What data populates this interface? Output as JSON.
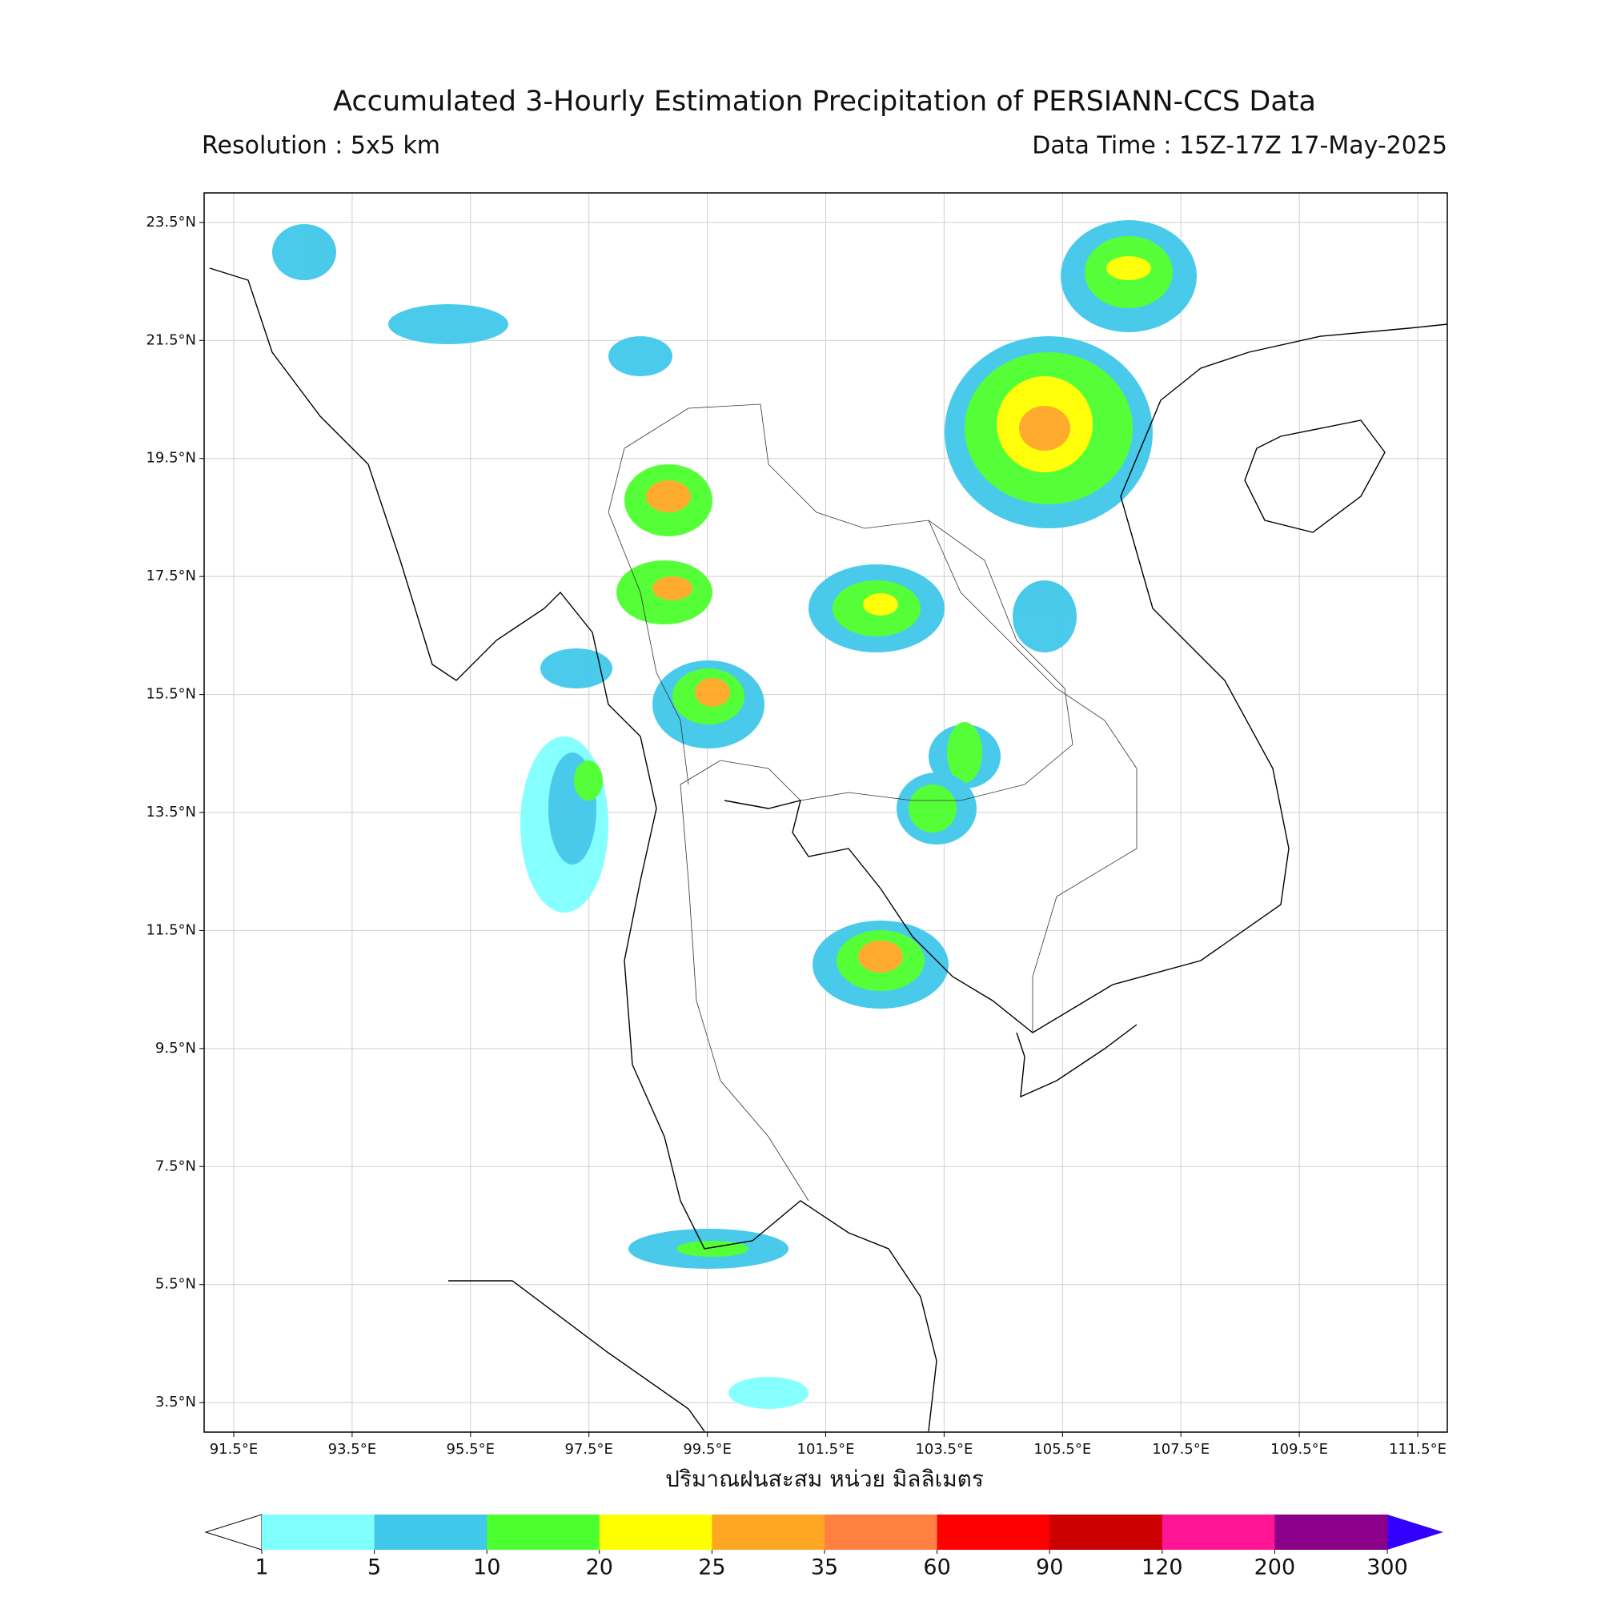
{
  "title": "Accumulated 3-Hourly Estimation Precipitation of PERSIANN-CCS Data",
  "resolution": "Resolution : 5x5 km",
  "data_time": "Data Time : 15Z-17Z 17-May-2025",
  "map": {
    "xlim": [
      91,
      112
    ],
    "ylim": [
      3,
      24
    ],
    "grid": true,
    "xticks": [
      {
        "value": 91.5,
        "label": "91.5°E"
      },
      {
        "value": 93.5,
        "label": "93.5°E"
      },
      {
        "value": 95.5,
        "label": "95.5°E"
      },
      {
        "value": 97.5,
        "label": "97.5°E"
      },
      {
        "value": 99.5,
        "label": "99.5°E"
      },
      {
        "value": 101.5,
        "label": "101.5°E"
      },
      {
        "value": 103.5,
        "label": "103.5°E"
      },
      {
        "value": 105.5,
        "label": "105.5°E"
      },
      {
        "value": 107.5,
        "label": "107.5°E"
      },
      {
        "value": 109.5,
        "label": "109.5°E"
      },
      {
        "value": 111.5,
        "label": "111.5°E"
      }
    ],
    "yticks": [
      {
        "value": 3.5,
        "label": "3.5°N"
      },
      {
        "value": 5.5,
        "label": "5.5°N"
      },
      {
        "value": 7.5,
        "label": "7.5°N"
      },
      {
        "value": 9.5,
        "label": "9.5°N"
      },
      {
        "value": 11.5,
        "label": "11.5°N"
      },
      {
        "value": 13.5,
        "label": "13.5°N"
      },
      {
        "value": 15.5,
        "label": "15.5°N"
      },
      {
        "value": 17.5,
        "label": "17.5°N"
      },
      {
        "value": 19.5,
        "label": "19.5°N"
      },
      {
        "value": 21.5,
        "label": "21.5°N"
      },
      {
        "value": 23.5,
        "label": "23.5°N"
      }
    ]
  },
  "colorbar": {
    "label": "ปริมาณฝนสะสม หน่วย มิลลิเมตร",
    "levels": [
      1,
      5,
      10,
      20,
      25,
      35,
      60,
      90,
      120,
      200,
      300
    ],
    "colors": [
      "#80ffff",
      "#40c8ea",
      "#4cff2e",
      "#ffff00",
      "#ffa722",
      "#ff8040",
      "#ff0000",
      "#cc0000",
      "#ff1493",
      "#8b008b"
    ],
    "under_color": "#ffffff",
    "over_color": "#3300ff"
  }
}
